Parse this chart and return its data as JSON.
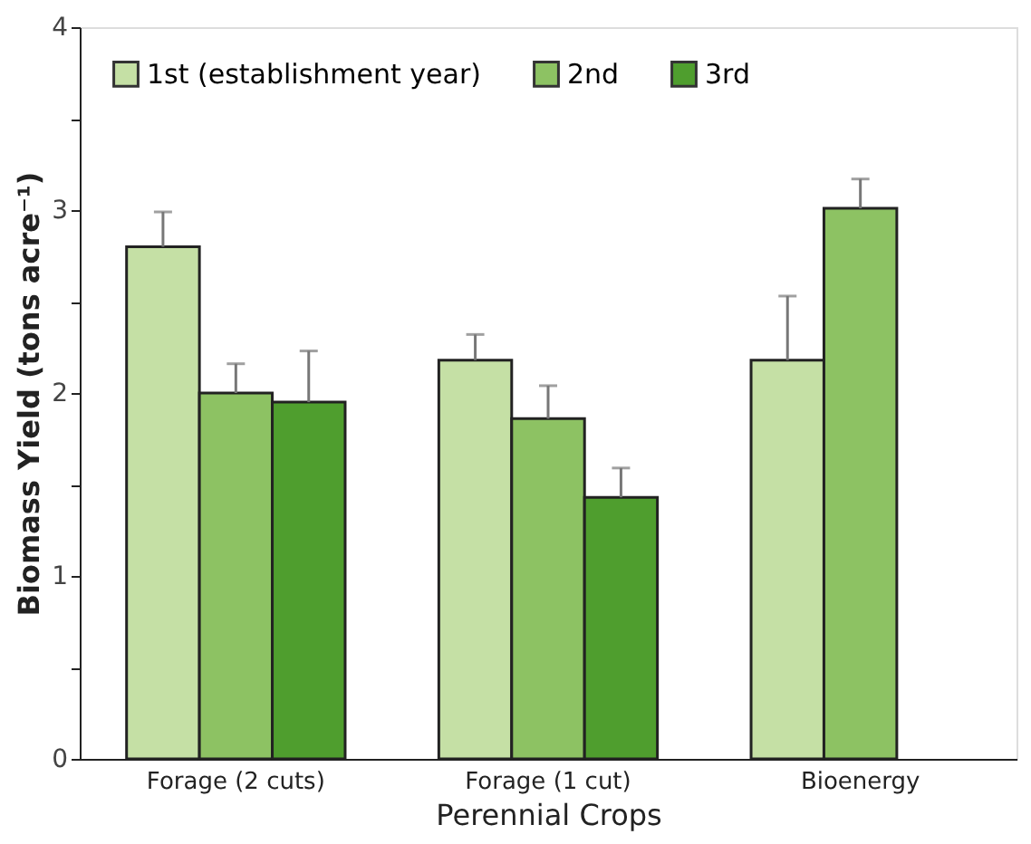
{
  "chart_data": {
    "type": "bar",
    "xlabel": "Perennial Crops",
    "ylabel": "Biomass Yield (tons acre⁻¹)",
    "categories": [
      "Forage (2 cuts)",
      "Forage (1 cut)",
      "Bioenergy"
    ],
    "series": [
      {
        "name": "1st (establishment year)",
        "color": "#c5e0a5",
        "values": [
          2.8,
          2.18,
          2.18
        ],
        "errors": [
          [
            2.8,
            2.99
          ],
          [
            2.18,
            2.32
          ],
          [
            2.18,
            2.53
          ]
        ]
      },
      {
        "name": "2nd",
        "color": "#8dc263",
        "values": [
          2.0,
          1.86,
          3.01
        ],
        "errors": [
          [
            2.0,
            2.16
          ],
          [
            1.86,
            2.04
          ],
          [
            3.01,
            3.17
          ]
        ]
      },
      {
        "name": "3rd",
        "color": "#4f9e2e",
        "values": [
          1.95,
          1.43,
          null
        ],
        "errors": [
          [
            1.95,
            2.23
          ],
          [
            1.43,
            1.59
          ],
          null
        ]
      }
    ],
    "ylim": [
      0,
      4
    ],
    "yticks": [
      0,
      {
        "value": 0.5,
        "label": null
      },
      1,
      {
        "value": 1.5,
        "label": null
      },
      2,
      {
        "value": 2.5,
        "label": null
      },
      3,
      {
        "value": 3.5,
        "label": null
      },
      4
    ],
    "grid": false,
    "legend": "top left"
  }
}
